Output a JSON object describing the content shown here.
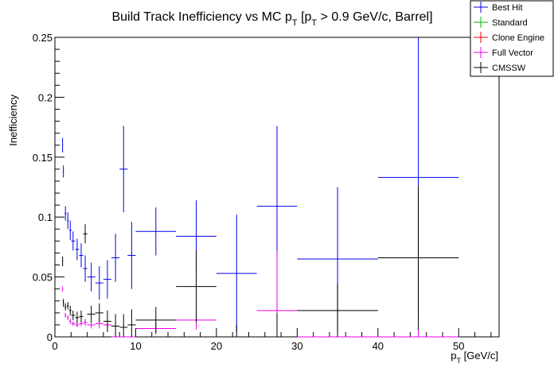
{
  "chart_data": {
    "type": "scatter",
    "title": "Build Track Inefficiency vs MC p_{T} [p_{T} > 0.9 GeV/c, Barrel]",
    "title_parts": {
      "pre": "Build Track Inefficiency vs MC p",
      "sub1": "T",
      "mid": " [p",
      "sub2": "T",
      "post": " > 0.9 GeV/c, Barrel]"
    },
    "xlabel": "p_{T} [GeV/c]",
    "xlabel_parts": {
      "main": "p",
      "sub": "T",
      "rest": " [GeV/c]"
    },
    "ylabel": "Inefficiency",
    "xlim": [
      0,
      55
    ],
    "ylim": [
      0,
      0.25
    ],
    "x_ticks": [
      "0",
      "10",
      "20",
      "30",
      "40",
      "50"
    ],
    "y_ticks": [
      "0",
      "0.05",
      "0.1",
      "0.15",
      "0.2",
      "0.25"
    ],
    "grid": false,
    "legend_position": "top-right",
    "series": [
      {
        "name": "Best Hit",
        "color": "#0000ee",
        "points": [
          {
            "x": 0.95,
            "y": 0.16,
            "xerr": 0.05,
            "yerr": 0.006
          },
          {
            "x": 1.05,
            "y": 0.138,
            "xerr": 0.05,
            "yerr": 0.005
          },
          {
            "x": 1.3,
            "y": 0.103,
            "xerr": 0.1,
            "yerr": 0.006
          },
          {
            "x": 1.6,
            "y": 0.097,
            "xerr": 0.1,
            "yerr": 0.007
          },
          {
            "x": 1.9,
            "y": 0.089,
            "xerr": 0.15,
            "yerr": 0.008
          },
          {
            "x": 2.25,
            "y": 0.08,
            "xerr": 0.25,
            "yerr": 0.008
          },
          {
            "x": 2.75,
            "y": 0.073,
            "xerr": 0.25,
            "yerr": 0.009
          },
          {
            "x": 3.25,
            "y": 0.068,
            "xerr": 0.25,
            "yerr": 0.01
          },
          {
            "x": 3.75,
            "y": 0.057,
            "xerr": 0.25,
            "yerr": 0.011
          },
          {
            "x": 4.5,
            "y": 0.05,
            "xerr": 0.5,
            "yerr": 0.012
          },
          {
            "x": 5.5,
            "y": 0.045,
            "xerr": 0.5,
            "yerr": 0.014
          },
          {
            "x": 6.5,
            "y": 0.048,
            "xerr": 0.5,
            "yerr": 0.016
          },
          {
            "x": 7.5,
            "y": 0.066,
            "xerr": 0.5,
            "yerr": 0.02
          },
          {
            "x": 8.5,
            "y": 0.14,
            "xerr": 0.5,
            "yerr": 0.036
          },
          {
            "x": 9.5,
            "y": 0.068,
            "xerr": 0.5,
            "yerr": 0.028
          },
          {
            "x": 12.5,
            "y": 0.088,
            "xerr": 2.5,
            "yerr": 0.02
          },
          {
            "x": 17.5,
            "y": 0.084,
            "xerr": 2.5,
            "yerr": 0.03
          },
          {
            "x": 22.5,
            "y": 0.053,
            "xerr": 2.5,
            "yerr": 0.049
          },
          {
            "x": 27.5,
            "y": 0.109,
            "xerr": 2.5,
            "yerr": 0.067
          },
          {
            "x": 35,
            "y": 0.065,
            "xerr": 5,
            "yerr": 0.06
          },
          {
            "x": 45,
            "y": 0.133,
            "xerr": 5,
            "yerr": 0.117
          }
        ]
      },
      {
        "name": "Standard",
        "color": "#00bb00",
        "points": []
      },
      {
        "name": "Clone Engine",
        "color": "#ee0000",
        "points": []
      },
      {
        "name": "Full Vector",
        "color": "#ee00ee",
        "points": [
          {
            "x": 0.95,
            "y": 0.04,
            "xerr": 0.05,
            "yerr": 0.002
          },
          {
            "x": 1.05,
            "y": 0.03,
            "xerr": 0.05,
            "yerr": 0.002
          },
          {
            "x": 1.3,
            "y": 0.018,
            "xerr": 0.1,
            "yerr": 0.002
          },
          {
            "x": 1.6,
            "y": 0.016,
            "xerr": 0.1,
            "yerr": 0.002
          },
          {
            "x": 1.9,
            "y": 0.013,
            "xerr": 0.15,
            "yerr": 0.002
          },
          {
            "x": 2.25,
            "y": 0.011,
            "xerr": 0.25,
            "yerr": 0.002
          },
          {
            "x": 2.75,
            "y": 0.01,
            "xerr": 0.25,
            "yerr": 0.002
          },
          {
            "x": 3.25,
            "y": 0.011,
            "xerr": 0.25,
            "yerr": 0.002
          },
          {
            "x": 3.75,
            "y": 0.012,
            "xerr": 0.25,
            "yerr": 0.003
          },
          {
            "x": 4.5,
            "y": 0.01,
            "xerr": 0.5,
            "yerr": 0.003
          },
          {
            "x": 5.5,
            "y": 0.011,
            "xerr": 0.5,
            "yerr": 0.004
          },
          {
            "x": 6.5,
            "y": 0.01,
            "xerr": 0.5,
            "yerr": 0.004
          },
          {
            "x": 7.5,
            "y": 0.0,
            "xerr": 0.5,
            "yerr": 0.0
          },
          {
            "x": 8.5,
            "y": 0.0,
            "xerr": 0.5,
            "yerr": 0.0
          },
          {
            "x": 9.5,
            "y": 0.0,
            "xerr": 0.5,
            "yerr": 0.0
          },
          {
            "x": 12.5,
            "y": 0.007,
            "xerr": 2.5,
            "yerr": 0.005
          },
          {
            "x": 17.5,
            "y": 0.014,
            "xerr": 2.5,
            "yerr": 0.008
          },
          {
            "x": 22.5,
            "y": 0.0,
            "xerr": 2.5,
            "yerr": 0.0
          },
          {
            "x": 27.5,
            "y": 0.022,
            "xerr": 2.5,
            "yerr": 0.05
          },
          {
            "x": 35,
            "y": 0.0,
            "xerr": 5,
            "yerr": 0.0
          },
          {
            "x": 45,
            "y": 0.0,
            "xerr": 5,
            "yerr": 0.01
          }
        ]
      },
      {
        "name": "CMSSW",
        "color": "#000000",
        "points": [
          {
            "x": 0.95,
            "y": 0.063,
            "xerr": 0.05,
            "yerr": 0.004
          },
          {
            "x": 1.05,
            "y": 0.028,
            "xerr": 0.05,
            "yerr": 0.003
          },
          {
            "x": 1.3,
            "y": 0.025,
            "xerr": 0.1,
            "yerr": 0.003
          },
          {
            "x": 1.6,
            "y": 0.026,
            "xerr": 0.1,
            "yerr": 0.003
          },
          {
            "x": 1.9,
            "y": 0.022,
            "xerr": 0.15,
            "yerr": 0.004
          },
          {
            "x": 2.25,
            "y": 0.018,
            "xerr": 0.25,
            "yerr": 0.004
          },
          {
            "x": 2.75,
            "y": 0.016,
            "xerr": 0.25,
            "yerr": 0.005
          },
          {
            "x": 3.25,
            "y": 0.017,
            "xerr": 0.25,
            "yerr": 0.005
          },
          {
            "x": 3.75,
            "y": 0.086,
            "xerr": 0.25,
            "yerr": 0.008
          },
          {
            "x": 4.5,
            "y": 0.019,
            "xerr": 0.5,
            "yerr": 0.007
          },
          {
            "x": 5.5,
            "y": 0.02,
            "xerr": 0.5,
            "yerr": 0.008
          },
          {
            "x": 6.5,
            "y": 0.013,
            "xerr": 0.5,
            "yerr": 0.009
          },
          {
            "x": 7.5,
            "y": 0.009,
            "xerr": 0.5,
            "yerr": 0.01
          },
          {
            "x": 8.5,
            "y": 0.008,
            "xerr": 0.5,
            "yerr": 0.011
          },
          {
            "x": 9.5,
            "y": 0.01,
            "xerr": 0.5,
            "yerr": 0.013
          },
          {
            "x": 12.5,
            "y": 0.014,
            "xerr": 2.5,
            "yerr": 0.011
          },
          {
            "x": 17.5,
            "y": 0.042,
            "xerr": 2.5,
            "yerr": 0.03
          },
          {
            "x": 22.5,
            "y": 0.0,
            "xerr": 2.5,
            "yerr": 0.01
          },
          {
            "x": 27.5,
            "y": 0.0,
            "xerr": 2.5,
            "yerr": 0.02
          },
          {
            "x": 35,
            "y": 0.022,
            "xerr": 5,
            "yerr": 0.022
          },
          {
            "x": 45,
            "y": 0.066,
            "xerr": 5,
            "yerr": 0.06
          }
        ]
      }
    ]
  }
}
